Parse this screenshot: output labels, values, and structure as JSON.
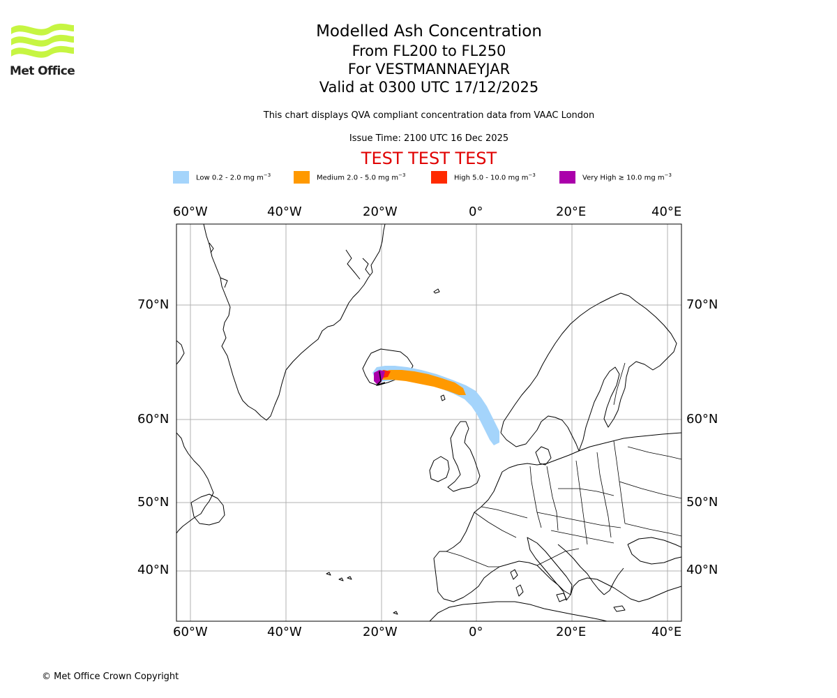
{
  "header": {
    "logo_name": "Met Office",
    "title": "Modelled Ash Concentration",
    "flight_levels": "From FL200 to FL250",
    "volcano": "For VESTMANNAEYJAR",
    "valid_time": "Valid at 0300 UTC 17/12/2025",
    "description": "This chart displays QVA compliant concentration data from VAAC London",
    "issue_time": "Issue Time: 2100 UTC 16 Dec 2025",
    "test_banner": "TEST TEST TEST"
  },
  "legend": [
    {
      "label": "Low 0.2 - 2.0 mg m",
      "color": "#a4d4fb"
    },
    {
      "label": "Medium 2.0 - 5.0 mg m",
      "color": "#ff9900"
    },
    {
      "label": "High 5.0 - 10.0 mg m",
      "color": "#ff2a00"
    },
    {
      "label": "Very High ≥ 10.0 mg m",
      "color": "#aa00aa"
    }
  ],
  "legend_unit_exponent": "−3",
  "map": {
    "longitude_ticks": [
      "60°W",
      "40°W",
      "20°W",
      "0°",
      "20°E",
      "40°E"
    ],
    "latitude_ticks": [
      "70°N",
      "60°N",
      "50°N",
      "40°N"
    ],
    "coastline_color": "#000000",
    "grid_color": "#b0b0b0"
  },
  "footer": {
    "copyright": "© Met Office Crown Copyright"
  }
}
